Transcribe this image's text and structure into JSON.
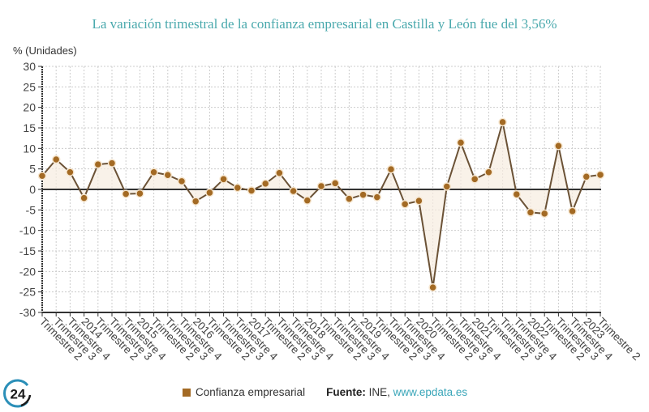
{
  "header": {
    "title": "La variación trimestral de la confianza empresarial en Castilla y León fue del 3,56%",
    "unit_label": "% (Unidades)"
  },
  "legend": {
    "series_label": "Confianza empresarial",
    "source_prefix": "Fuente:",
    "source_name": "INE,",
    "source_link": "www.epdata.es"
  },
  "logo": {
    "text": "24",
    "icon": "europa-press-24-logo"
  },
  "colors": {
    "title": "#4aa9ad",
    "line": "#6b5236",
    "marker": "#a36a24",
    "area": "#f7ece0",
    "grid": "#cccccc",
    "link": "#3aa6b9"
  },
  "chart_data": {
    "type": "line",
    "title": "La variación trimestral de la confianza empresarial en Castilla y León fue del 3,56%",
    "xlabel": "",
    "ylabel": "% (Unidades)",
    "ylim": [
      -30,
      30
    ],
    "yticks": [
      30,
      25,
      20,
      15,
      10,
      5,
      0,
      -5,
      -10,
      -15,
      -20,
      -25,
      -30
    ],
    "grid": true,
    "legend_position": "bottom",
    "categories": [
      "Trimestre 2",
      "Trimestre 3",
      "Trimestre 4",
      "2014",
      "Trimestre 2",
      "Trimestre 3",
      "Trimestre 4",
      "2015",
      "Trimestre 2",
      "Trimestre 3",
      "Trimestre 4",
      "2016",
      "Trimestre 2",
      "Trimestre 3",
      "Trimestre 4",
      "2017",
      "Trimestre 2",
      "Trimestre 3",
      "Trimestre 4",
      "2018",
      "Trimestre 2",
      "Trimestre 3",
      "Trimestre 4",
      "2019",
      "Trimestre 2",
      "Trimestre 3",
      "Trimestre 4",
      "2020",
      "Trimestre 2",
      "Trimestre 3",
      "Trimestre 4",
      "2021",
      "Trimestre 2",
      "Trimestre 3",
      "Trimestre 4",
      "2022",
      "Trimestre 2",
      "Trimestre 3",
      "Trimestre 4",
      "2023",
      "Trimestre 2"
    ],
    "series": [
      {
        "name": "Confianza empresarial",
        "values": [
          3.3,
          7.3,
          4.2,
          -2.1,
          6.1,
          6.4,
          -1.1,
          -1.0,
          4.2,
          3.5,
          2.0,
          -2.9,
          -0.8,
          2.5,
          0.4,
          -0.3,
          1.4,
          4.0,
          -0.4,
          -2.7,
          0.8,
          1.5,
          -2.3,
          -1.3,
          -1.9,
          4.9,
          -3.6,
          -2.8,
          -23.9,
          0.7,
          11.4,
          2.5,
          4.2,
          16.4,
          -1.2,
          -5.6,
          -5.9,
          10.6,
          -5.3,
          3.1,
          3.56
        ]
      }
    ]
  }
}
